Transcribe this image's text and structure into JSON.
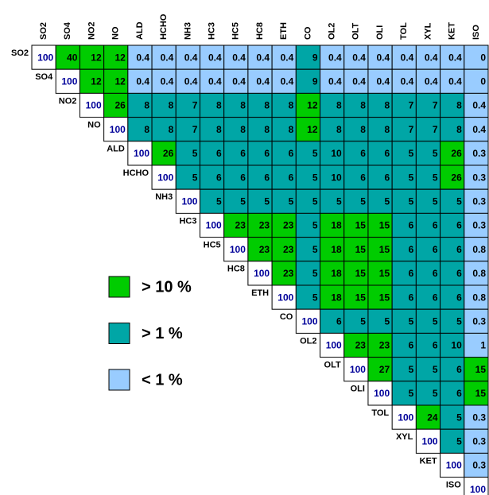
{
  "columns": [
    "SO2",
    "SO4",
    "NO2",
    "NO",
    "ALD",
    "HCHO",
    "NH3",
    "HC3",
    "HC5",
    "HC8",
    "ETH",
    "CO",
    "OL2",
    "OLT",
    "OLI",
    "TOL",
    "XYL",
    "KET",
    "ISO"
  ],
  "rows": [
    {
      "label": "SO2",
      "values": [
        100,
        40,
        12,
        12,
        0.4,
        0.4,
        0.4,
        0.4,
        0.4,
        0.4,
        0.4,
        9,
        0.4,
        0.4,
        0.4,
        0.4,
        0.4,
        0.4,
        0
      ]
    },
    {
      "label": "SO4",
      "values": [
        100,
        12,
        12,
        0.4,
        0.4,
        0.4,
        0.4,
        0.4,
        0.4,
        0.4,
        9,
        0.4,
        0.4,
        0.4,
        0.4,
        0.4,
        0.4,
        0
      ]
    },
    {
      "label": "NO2",
      "values": [
        100,
        26,
        8,
        8,
        7,
        8,
        8,
        8,
        8,
        12,
        8,
        8,
        8,
        7,
        7,
        8,
        0.4
      ]
    },
    {
      "label": "NO",
      "values": [
        100,
        8,
        8,
        7,
        8,
        8,
        8,
        8,
        12,
        8,
        8,
        8,
        7,
        7,
        8,
        0.4
      ]
    },
    {
      "label": "ALD",
      "values": [
        100,
        26,
        5,
        6,
        6,
        6,
        6,
        5,
        10,
        6,
        6,
        5,
        5,
        26,
        0.3
      ]
    },
    {
      "label": "HCHO",
      "values": [
        100,
        5,
        6,
        6,
        6,
        6,
        5,
        10,
        6,
        6,
        5,
        5,
        26,
        0.3
      ]
    },
    {
      "label": "NH3",
      "values": [
        100,
        5,
        5,
        5,
        5,
        5,
        5,
        5,
        5,
        5,
        5,
        5,
        0.3
      ]
    },
    {
      "label": "HC3",
      "values": [
        100,
        23,
        23,
        23,
        5,
        18,
        15,
        15,
        6,
        6,
        6,
        0.3
      ]
    },
    {
      "label": "HC5",
      "values": [
        100,
        23,
        23,
        5,
        18,
        15,
        15,
        6,
        6,
        6,
        0.8
      ]
    },
    {
      "label": "HC8",
      "values": [
        100,
        23,
        5,
        18,
        15,
        15,
        6,
        6,
        6,
        0.8
      ]
    },
    {
      "label": "ETH",
      "values": [
        100,
        5,
        18,
        15,
        15,
        6,
        6,
        6,
        0.8
      ]
    },
    {
      "label": "CO",
      "values": [
        100,
        6,
        5,
        5,
        5,
        5,
        5,
        0.3
      ]
    },
    {
      "label": "OL2",
      "values": [
        100,
        23,
        23,
        6,
        6,
        10,
        1
      ]
    },
    {
      "label": "OLT",
      "values": [
        100,
        27,
        5,
        5,
        6,
        15
      ]
    },
    {
      "label": "OLI",
      "values": [
        100,
        5,
        5,
        6,
        15
      ]
    },
    {
      "label": "TOL",
      "values": [
        100,
        24,
        5,
        0.3
      ]
    },
    {
      "label": "XYL",
      "values": [
        100,
        5,
        0.3
      ]
    },
    {
      "label": "KET",
      "values": [
        100,
        0.3
      ]
    },
    {
      "label": "ISO",
      "values": [
        100
      ]
    }
  ],
  "legend": [
    {
      "label": "> 10 %",
      "above": 10,
      "color": "#00cc00"
    },
    {
      "label": "> 1 %",
      "above": 1,
      "color": "#00a6a6"
    },
    {
      "label": "< 1 %",
      "color": "#99ccff"
    }
  ]
}
